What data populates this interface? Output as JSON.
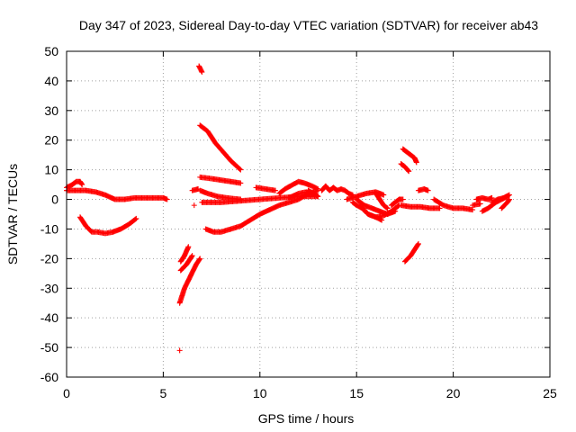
{
  "chart_data": {
    "type": "scatter",
    "title": "Day 347 of 2023, Sidereal Day-to-day VTEC variation (SDTVAR) for receiver ab43",
    "xlabel": "GPS time / hours",
    "ylabel": "SDTVAR / TECUs",
    "xlim": [
      0,
      25
    ],
    "ylim": [
      -60,
      50
    ],
    "xticks": [
      0,
      5,
      10,
      15,
      20,
      25
    ],
    "yticks": [
      -60,
      -50,
      -40,
      -30,
      -20,
      -10,
      0,
      10,
      20,
      30,
      40,
      50
    ],
    "grid": true,
    "legend": "none",
    "marker": "plus",
    "point_color": "#ff0000",
    "series": [
      {
        "segments": [
          [
            [
              0.0,
              4
            ],
            [
              0.3,
              5
            ],
            [
              0.5,
              6
            ],
            [
              0.7,
              6
            ],
            [
              0.8,
              5
            ]
          ],
          [
            [
              0.0,
              3.0
            ],
            [
              0.5,
              3.0
            ],
            [
              1.0,
              3.0
            ],
            [
              1.5,
              2.5
            ],
            [
              2.0,
              1.5
            ],
            [
              2.5,
              0.0
            ],
            [
              3.0,
              0.0
            ],
            [
              3.5,
              0.5
            ],
            [
              4.0,
              0.5
            ],
            [
              4.5,
              0.5
            ],
            [
              5.0,
              0.5
            ],
            [
              5.2,
              0
            ]
          ],
          [
            [
              0.7,
              -6
            ],
            [
              1.0,
              -9
            ],
            [
              1.3,
              -11
            ],
            [
              1.6,
              -11
            ],
            [
              2.0,
              -11.5
            ],
            [
              2.4,
              -11
            ],
            [
              2.8,
              -10
            ],
            [
              3.2,
              -8.5
            ],
            [
              3.6,
              -6.5
            ]
          ],
          [
            [
              6.5,
              3
            ],
            [
              6.8,
              3.5
            ]
          ],
          [
            [
              6.6,
              -2
            ]
          ],
          [
            [
              5.85,
              -35
            ],
            [
              6.1,
              -30
            ],
            [
              6.4,
              -26
            ],
            [
              6.7,
              -22
            ],
            [
              6.9,
              -20
            ]
          ],
          [
            [
              5.9,
              -24
            ],
            [
              6.2,
              -22
            ],
            [
              6.5,
              -19
            ]
          ],
          [
            [
              5.9,
              -21
            ],
            [
              6.1,
              -19
            ],
            [
              6.3,
              -16
            ]
          ],
          [
            [
              5.85,
              -51
            ]
          ],
          [
            [
              6.85,
              45
            ],
            [
              7.0,
              43
            ]
          ],
          [
            [
              6.9,
              25
            ],
            [
              7.3,
              23
            ],
            [
              7.7,
              19
            ],
            [
              8.1,
              16
            ],
            [
              8.5,
              13
            ],
            [
              9.0,
              10
            ]
          ],
          [
            [
              6.9,
              7.5
            ],
            [
              7.5,
              7
            ],
            [
              8.0,
              6.5
            ],
            [
              8.5,
              6
            ],
            [
              9.0,
              5.5
            ]
          ],
          [
            [
              6.9,
              3
            ],
            [
              7.3,
              2
            ],
            [
              7.8,
              1
            ],
            [
              8.3,
              0.5
            ],
            [
              9.0,
              0
            ]
          ],
          [
            [
              7.2,
              -10
            ],
            [
              7.6,
              -11
            ],
            [
              8.0,
              -11
            ],
            [
              8.5,
              -10
            ],
            [
              9.0,
              -9
            ],
            [
              9.5,
              -7
            ],
            [
              10.0,
              -5
            ],
            [
              10.5,
              -3.5
            ],
            [
              11.0,
              -2
            ],
            [
              11.5,
              -1
            ],
            [
              12.0,
              0
            ],
            [
              12.5,
              2
            ],
            [
              13.0,
              3
            ]
          ],
          [
            [
              7.0,
              -1
            ],
            [
              8.0,
              -1
            ],
            [
              9.0,
              -0.5
            ],
            [
              10.0,
              0
            ],
            [
              11.0,
              0.5
            ],
            [
              12.0,
              1
            ],
            [
              13.0,
              1
            ]
          ],
          [
            [
              9.8,
              4
            ],
            [
              10.3,
              3.5
            ],
            [
              10.8,
              3
            ]
          ],
          [
            [
              11.0,
              2
            ],
            [
              11.3,
              3.5
            ],
            [
              11.7,
              5
            ],
            [
              12.0,
              6
            ],
            [
              12.3,
              5.5
            ],
            [
              12.7,
              4.5
            ],
            [
              13.0,
              3.5
            ]
          ],
          [
            [
              11.5,
              0.5
            ],
            [
              12.0,
              2
            ],
            [
              12.4,
              2.5
            ],
            [
              12.8,
              2
            ]
          ],
          [
            [
              12.5,
              3
            ],
            [
              12.8,
              2
            ],
            [
              13.0,
              1
            ]
          ],
          [
            [
              13.2,
              3
            ],
            [
              13.4,
              4.5
            ],
            [
              13.6,
              3
            ],
            [
              13.8,
              4
            ],
            [
              14.0,
              3
            ],
            [
              14.2,
              3.5
            ],
            [
              14.4,
              3
            ],
            [
              14.6,
              2
            ],
            [
              14.8,
              1.5
            ]
          ],
          [
            [
              14.5,
              0
            ],
            [
              15.0,
              1
            ],
            [
              15.5,
              2
            ],
            [
              16.0,
              2.5
            ],
            [
              16.4,
              1.5
            ]
          ],
          [
            [
              14.8,
              -1
            ],
            [
              15.0,
              -2
            ],
            [
              15.3,
              -3
            ],
            [
              15.6,
              -5
            ],
            [
              16.0,
              -6
            ],
            [
              16.4,
              -5.5
            ],
            [
              16.8,
              -4
            ],
            [
              17.2,
              -2
            ]
          ],
          [
            [
              15.0,
              0
            ],
            [
              15.4,
              -2
            ],
            [
              15.8,
              -3
            ],
            [
              16.2,
              -4
            ],
            [
              16.6,
              -5
            ],
            [
              17.0,
              -4
            ]
          ],
          [
            [
              15.3,
              -3
            ],
            [
              15.6,
              -5
            ],
            [
              16.0,
              -6
            ],
            [
              16.3,
              -7
            ]
          ],
          [
            [
              16.0,
              2
            ],
            [
              16.2,
              0
            ],
            [
              16.4,
              -2
            ],
            [
              16.6,
              -3
            ]
          ],
          [
            [
              16.8,
              -2
            ],
            [
              17.0,
              -1
            ],
            [
              17.2,
              0
            ],
            [
              17.4,
              0
            ]
          ],
          [
            [
              17.4,
              17
            ],
            [
              17.6,
              16
            ],
            [
              17.8,
              15
            ],
            [
              18.0,
              14
            ],
            [
              18.1,
              12.5
            ]
          ],
          [
            [
              17.3,
              12
            ],
            [
              17.5,
              11
            ],
            [
              17.7,
              9.5
            ]
          ],
          [
            [
              17.5,
              -21
            ],
            [
              17.8,
              -19
            ],
            [
              18.0,
              -17
            ],
            [
              18.2,
              -15
            ]
          ],
          [
            [
              18.2,
              3
            ],
            [
              18.5,
              3.5
            ],
            [
              18.7,
              3
            ]
          ],
          [
            [
              17.3,
              -2
            ],
            [
              17.8,
              -2.5
            ],
            [
              18.3,
              -2.5
            ],
            [
              18.8,
              -3
            ],
            [
              19.3,
              -3
            ]
          ],
          [
            [
              19.0,
              0
            ],
            [
              19.5,
              -2
            ],
            [
              20.0,
              -3
            ],
            [
              20.5,
              -3
            ],
            [
              21.0,
              -3.5
            ]
          ],
          [
            [
              21.0,
              -2
            ],
            [
              21.4,
              -1.5
            ]
          ],
          [
            [
              21.2,
              0
            ],
            [
              21.5,
              0.5
            ],
            [
              21.8,
              0
            ],
            [
              22.0,
              0.5
            ]
          ],
          [
            [
              21.5,
              -4
            ],
            [
              21.8,
              -3
            ],
            [
              22.0,
              -2
            ],
            [
              22.2,
              -1
            ],
            [
              22.5,
              0
            ],
            [
              22.8,
              1
            ]
          ],
          [
            [
              22.0,
              -1
            ],
            [
              22.3,
              0
            ],
            [
              22.6,
              0.5
            ],
            [
              22.9,
              1.5
            ]
          ],
          [
            [
              22.5,
              -3
            ],
            [
              22.8,
              -1
            ],
            [
              22.9,
              0
            ]
          ]
        ]
      }
    ]
  }
}
